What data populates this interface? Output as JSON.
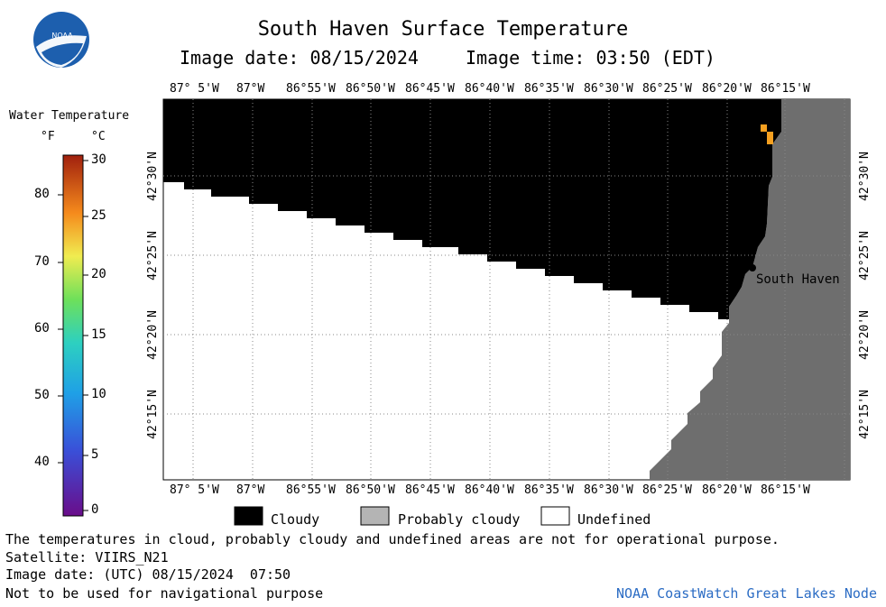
{
  "header": {
    "title": "South Haven Surface Temperature",
    "image_date_label": "Image date: 08/15/2024",
    "image_time_label": "Image time: 03:50 (EDT)"
  },
  "logo": {
    "text": "NOAA"
  },
  "colorbar": {
    "title": "Water Temperature",
    "unit_f": "°F",
    "unit_c": "°C",
    "ticks_f": [
      "80",
      "70",
      "60",
      "50",
      "40"
    ],
    "ticks_c": [
      "30",
      "25",
      "20",
      "15",
      "10",
      "5",
      "0"
    ]
  },
  "map": {
    "lon_labels": [
      "87° 5'W",
      "87°W",
      "86°55'W",
      "86°50'W",
      "86°45'W",
      "86°40'W",
      "86°35'W",
      "86°30'W",
      "86°25'W",
      "86°20'W",
      "86°15'W"
    ],
    "lat_labels": [
      "42°30'N",
      "42°25'N",
      "42°20'N",
      "42°15'N"
    ],
    "place_label": "South Haven",
    "colors": {
      "cloud": "#000000",
      "land": "#6e6e6e",
      "undefined": "#ffffff",
      "warm_pixel": "#f5a020"
    }
  },
  "legend": {
    "cloudy": "Cloudy",
    "probably_cloudy": "Probably cloudy",
    "undefined": "Undefined"
  },
  "footer": {
    "disclaimer": "The temperatures in cloud, probably cloudy and undefined areas are not for operational purpose.",
    "satellite": "Satellite: VIIRS_N21",
    "utc_date": "Image date: (UTC) 08/15/2024  07:50",
    "nav_warning": "Not to be used for navigational purpose",
    "credit": "NOAA CoastWatch Great Lakes Node"
  }
}
